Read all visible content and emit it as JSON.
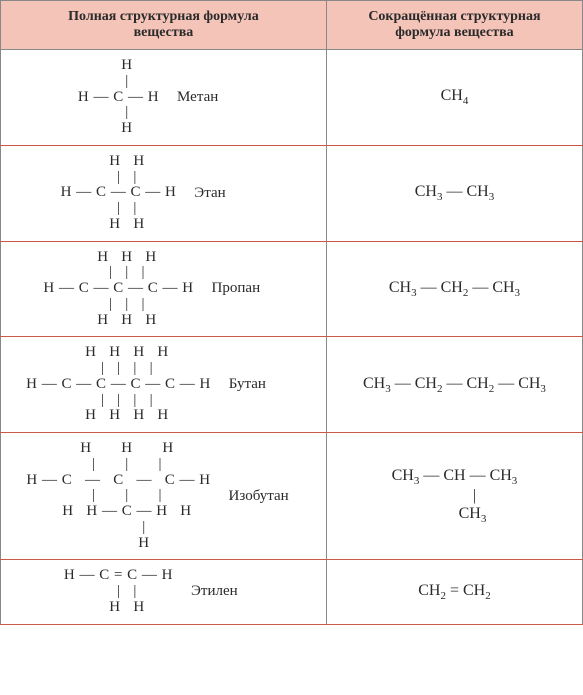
{
  "colors": {
    "header_bg": "#f4c4b8",
    "border": "#888888",
    "row_divider": "#c9574a",
    "text": "#2a2a2a",
    "background": "#ffffff"
  },
  "typography": {
    "header_fontsize": 14,
    "body_fontsize": 15,
    "font_family": "Times New Roman"
  },
  "headers": {
    "left": "Полная структурная формула\nвещества",
    "right": "Сокращённая структурная\nформула вещества"
  },
  "rows": [
    {
      "name": "Метан",
      "short_html": "CH<sub>4</sub>",
      "struct": "    H\n    |\nH — C — H\n    |\n    H"
    },
    {
      "name": "Этан",
      "short_html": "CH<sub>3</sub> — CH<sub>3</sub>",
      "struct": "    H   H\n    |   |\nH — C — C — H\n    |   |\n    H   H"
    },
    {
      "name": "Пропан",
      "short_html": "CH<sub>3</sub> — CH<sub>2</sub> — CH<sub>3</sub>",
      "struct": "    H   H   H\n    |   |   |\nH — C — C — C — H\n    |   |   |\n    H   H   H"
    },
    {
      "name": "Бутан",
      "short_html": "CH<sub>3</sub> — CH<sub>2</sub> — CH<sub>2</sub> — CH<sub>3</sub>",
      "struct": "    H   H   H   H\n    |   |   |   |\nH — C — C — C — C — H\n    |   |   |   |\n    H   H   H   H"
    },
    {
      "name": "Изобутан",
      "short_html": "CH<sub>3</sub> — CH — CH<sub>3</sub><br>&nbsp;&nbsp;&nbsp;&nbsp;&nbsp;&nbsp;&nbsp;&nbsp;&nbsp;&nbsp;|<br>&nbsp;&nbsp;&nbsp;&nbsp;&nbsp;&nbsp;&nbsp;&nbsp;&nbsp;CH<sub>3</sub>",
      "struct": "    H       H       H\n    |       |       |\nH — C   —   C   —   C — H\n    |       |       |\n    H   H — C — H   H\n            |\n            H"
    },
    {
      "name": "Этилен",
      "short_html": "CH<sub>2</sub> = CH<sub>2</sub>",
      "struct": "H — C = C — H\n    |   |\n    H   H"
    }
  ]
}
